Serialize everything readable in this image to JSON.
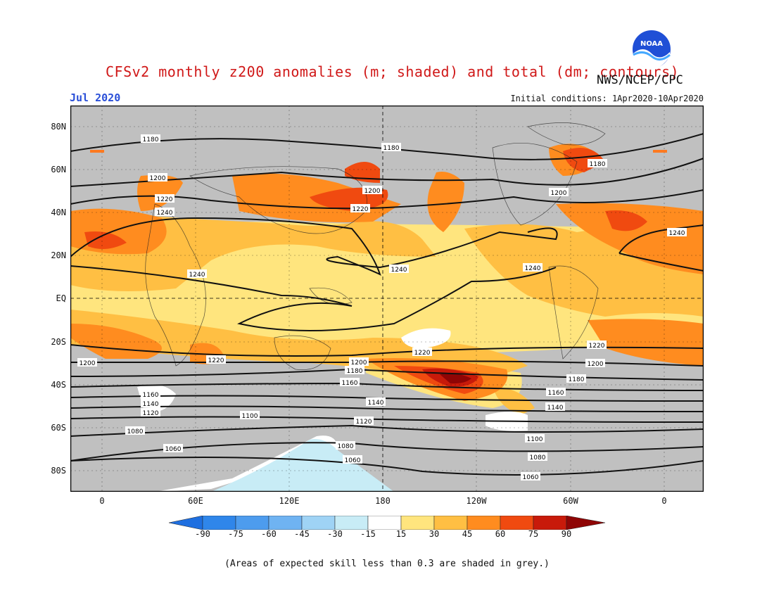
{
  "header": {
    "title": "CFSv2 monthly z200 anomalies (m; shaded) and total (dm; contours)",
    "agency": "NWS/NCEP/CPC",
    "logo_text": "NOAA",
    "month": "Jul 2020",
    "initial_conditions": "Initial conditions: 1Apr2020-10Apr2020"
  },
  "axes": {
    "lat_labels": [
      "80N",
      "60N",
      "40N",
      "20N",
      "EQ",
      "20S",
      "40S",
      "60S",
      "80S"
    ],
    "lon_labels": [
      "0",
      "60E",
      "120E",
      "180",
      "120W",
      "60W",
      "0"
    ]
  },
  "contours": {
    "labels": [
      "1180",
      "1180",
      "1180",
      "1200",
      "1200",
      "1200",
      "1220",
      "1220",
      "1240",
      "1240",
      "1240",
      "1240",
      "1240",
      "1220",
      "1220",
      "1200",
      "1220",
      "1200",
      "1200",
      "1180",
      "1160",
      "1180",
      "1160",
      "1160",
      "1140",
      "1140",
      "1140",
      "1120",
      "1100",
      "1120",
      "1080",
      "1100",
      "1060",
      "1080",
      "1060",
      "1080",
      "1060"
    ]
  },
  "colorbar": {
    "labels": [
      "-90",
      "-75",
      "-60",
      "-45",
      "-30",
      "-15",
      "15",
      "30",
      "45",
      "60",
      "75",
      "90"
    ],
    "colors": [
      "#1e6fe0",
      "#2f86ea",
      "#4d9cee",
      "#6fb3f2",
      "#9fd3f5",
      "#c8ecf6",
      "#ffffff",
      "#ffe57e",
      "#ffbf43",
      "#ff8c1f",
      "#f04a10",
      "#c81a0a",
      "#8f0505"
    ]
  },
  "footer": "(Areas of expected skill less than 0.3 are shaded in grey.)"
}
